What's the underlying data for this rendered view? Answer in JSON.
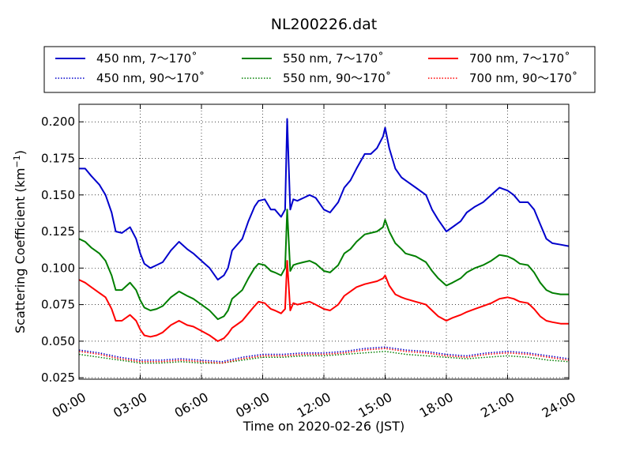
{
  "chart_data": {
    "type": "line",
    "title": "NL200226.dat",
    "xlabel": "Time on 2020-02-26 (JST)",
    "ylabel_main": "Scattering Coefficient (km",
    "ylabel_sup": "−1",
    "ylabel_tail": ")",
    "xlim": [
      0,
      24
    ],
    "ylim": [
      0.024,
      0.212
    ],
    "xticks": [
      0,
      3,
      6,
      9,
      12,
      15,
      18,
      21,
      24
    ],
    "xtick_labels": [
      "00:00",
      "03:00",
      "06:00",
      "09:00",
      "12:00",
      "15:00",
      "18:00",
      "21:00",
      "24:00"
    ],
    "yticks": [
      0.025,
      0.05,
      0.075,
      0.1,
      0.125,
      0.15,
      0.175,
      0.2
    ],
    "ytick_labels": [
      "0.025",
      "0.050",
      "0.075",
      "0.100",
      "0.125",
      "0.150",
      "0.175",
      "0.200"
    ],
    "grid": true,
    "legend_position": "top, above plot, 3 columns",
    "series": [
      {
        "name": "450 nm, 7～170˚",
        "color": "#0000cc",
        "style": "solid",
        "x": [
          0,
          0.3,
          0.6,
          1,
          1.3,
          1.6,
          1.8,
          2.1,
          2.5,
          2.8,
          3,
          3.2,
          3.5,
          3.8,
          4.1,
          4.5,
          4.9,
          5.3,
          5.6,
          6,
          6.4,
          6.8,
          7.1,
          7.3,
          7.5,
          8,
          8.3,
          8.6,
          8.8,
          9.1,
          9.4,
          9.6,
          9.9,
          10.1,
          10.2,
          10.35,
          10.5,
          10.7,
          11,
          11.3,
          11.6,
          12,
          12.3,
          12.7,
          13,
          13.3,
          13.6,
          14,
          14.3,
          14.6,
          14.9,
          15.0,
          15.2,
          15.5,
          15.8,
          16,
          16.5,
          17,
          17.3,
          17.6,
          18,
          18.3,
          18.7,
          19,
          19.4,
          19.8,
          20.2,
          20.6,
          21,
          21.3,
          21.6,
          22,
          22.3,
          22.6,
          22.9,
          23.2,
          23.6,
          24
        ],
        "values": [
          0.168,
          0.168,
          0.163,
          0.157,
          0.15,
          0.138,
          0.125,
          0.124,
          0.128,
          0.12,
          0.11,
          0.103,
          0.1,
          0.102,
          0.104,
          0.112,
          0.118,
          0.113,
          0.11,
          0.105,
          0.1,
          0.092,
          0.095,
          0.1,
          0.112,
          0.12,
          0.132,
          0.142,
          0.146,
          0.147,
          0.14,
          0.14,
          0.135,
          0.14,
          0.202,
          0.14,
          0.147,
          0.146,
          0.148,
          0.15,
          0.148,
          0.14,
          0.138,
          0.145,
          0.155,
          0.16,
          0.168,
          0.178,
          0.178,
          0.182,
          0.19,
          0.196,
          0.182,
          0.168,
          0.162,
          0.16,
          0.155,
          0.15,
          0.14,
          0.133,
          0.125,
          0.128,
          0.132,
          0.138,
          0.142,
          0.145,
          0.15,
          0.155,
          0.153,
          0.15,
          0.145,
          0.145,
          0.14,
          0.13,
          0.12,
          0.117,
          0.116,
          0.115
        ]
      },
      {
        "name": "550 nm, 7～170˚",
        "color": "#007f00",
        "style": "solid",
        "x": [
          0,
          0.3,
          0.6,
          1,
          1.3,
          1.6,
          1.8,
          2.1,
          2.5,
          2.8,
          3,
          3.2,
          3.5,
          3.8,
          4.1,
          4.5,
          4.9,
          5.3,
          5.6,
          6,
          6.4,
          6.8,
          7.1,
          7.3,
          7.5,
          8,
          8.3,
          8.6,
          8.8,
          9.1,
          9.4,
          9.6,
          9.9,
          10.1,
          10.2,
          10.35,
          10.5,
          10.7,
          11,
          11.3,
          11.6,
          12,
          12.3,
          12.7,
          13,
          13.3,
          13.6,
          14,
          14.3,
          14.6,
          14.9,
          15.0,
          15.2,
          15.5,
          15.8,
          16,
          16.5,
          17,
          17.3,
          17.6,
          18,
          18.3,
          18.7,
          19,
          19.4,
          19.8,
          20.2,
          20.6,
          21,
          21.3,
          21.6,
          22,
          22.3,
          22.6,
          22.9,
          23.2,
          23.6,
          24
        ],
        "values": [
          0.12,
          0.118,
          0.114,
          0.11,
          0.105,
          0.095,
          0.085,
          0.085,
          0.09,
          0.085,
          0.078,
          0.073,
          0.071,
          0.072,
          0.074,
          0.08,
          0.084,
          0.081,
          0.079,
          0.075,
          0.071,
          0.065,
          0.067,
          0.071,
          0.079,
          0.085,
          0.093,
          0.1,
          0.103,
          0.102,
          0.098,
          0.097,
          0.095,
          0.1,
          0.14,
          0.098,
          0.102,
          0.103,
          0.104,
          0.105,
          0.103,
          0.098,
          0.097,
          0.102,
          0.11,
          0.113,
          0.118,
          0.123,
          0.124,
          0.125,
          0.128,
          0.133,
          0.125,
          0.117,
          0.113,
          0.11,
          0.108,
          0.104,
          0.098,
          0.093,
          0.088,
          0.09,
          0.093,
          0.097,
          0.1,
          0.102,
          0.105,
          0.109,
          0.108,
          0.106,
          0.103,
          0.102,
          0.097,
          0.09,
          0.085,
          0.083,
          0.082,
          0.082
        ]
      },
      {
        "name": "700 nm, 7～170˚",
        "color": "#ff0000",
        "style": "solid",
        "x": [
          0,
          0.3,
          0.6,
          1,
          1.3,
          1.6,
          1.8,
          2.1,
          2.5,
          2.8,
          3,
          3.2,
          3.5,
          3.8,
          4.1,
          4.5,
          4.9,
          5.3,
          5.6,
          6,
          6.4,
          6.8,
          7.1,
          7.3,
          7.5,
          8,
          8.3,
          8.6,
          8.8,
          9.1,
          9.4,
          9.6,
          9.9,
          10.1,
          10.2,
          10.35,
          10.5,
          10.7,
          11,
          11.3,
          11.6,
          12,
          12.3,
          12.7,
          13,
          13.3,
          13.6,
          14,
          14.3,
          14.6,
          14.9,
          15.0,
          15.2,
          15.5,
          15.8,
          16,
          16.5,
          17,
          17.3,
          17.6,
          18,
          18.3,
          18.7,
          19,
          19.4,
          19.8,
          20.2,
          20.6,
          21,
          21.3,
          21.6,
          22,
          22.3,
          22.6,
          22.9,
          23.2,
          23.6,
          24
        ],
        "values": [
          0.092,
          0.09,
          0.087,
          0.083,
          0.08,
          0.072,
          0.064,
          0.064,
          0.068,
          0.064,
          0.058,
          0.054,
          0.053,
          0.054,
          0.056,
          0.061,
          0.064,
          0.061,
          0.06,
          0.057,
          0.054,
          0.05,
          0.052,
          0.055,
          0.059,
          0.064,
          0.069,
          0.074,
          0.077,
          0.076,
          0.072,
          0.071,
          0.069,
          0.072,
          0.105,
          0.071,
          0.076,
          0.075,
          0.076,
          0.077,
          0.075,
          0.072,
          0.071,
          0.075,
          0.081,
          0.084,
          0.087,
          0.089,
          0.09,
          0.091,
          0.093,
          0.095,
          0.088,
          0.082,
          0.08,
          0.079,
          0.077,
          0.075,
          0.071,
          0.067,
          0.064,
          0.066,
          0.068,
          0.07,
          0.072,
          0.074,
          0.076,
          0.079,
          0.08,
          0.079,
          0.077,
          0.076,
          0.072,
          0.067,
          0.064,
          0.063,
          0.062,
          0.062
        ]
      },
      {
        "name": "450 nm, 90～170˚",
        "color": "#0000cc",
        "style": "dotted",
        "x": [
          0,
          1,
          2,
          3,
          4,
          5,
          6,
          7,
          8,
          9,
          10,
          11,
          12,
          13,
          14,
          15,
          16,
          17,
          18,
          19,
          20,
          21,
          22,
          23,
          24
        ],
        "values": [
          0.044,
          0.042,
          0.039,
          0.037,
          0.037,
          0.038,
          0.037,
          0.036,
          0.039,
          0.041,
          0.041,
          0.042,
          0.042,
          0.043,
          0.045,
          0.046,
          0.044,
          0.043,
          0.041,
          0.04,
          0.042,
          0.043,
          0.042,
          0.04,
          0.038
        ]
      },
      {
        "name": "550 nm, 90～170˚",
        "color": "#007f00",
        "style": "dotted",
        "x": [
          0,
          1,
          2,
          3,
          4,
          5,
          6,
          7,
          8,
          9,
          10,
          11,
          12,
          13,
          14,
          15,
          16,
          17,
          18,
          19,
          20,
          21,
          22,
          23,
          24
        ],
        "values": [
          0.041,
          0.039,
          0.037,
          0.035,
          0.035,
          0.036,
          0.035,
          0.035,
          0.037,
          0.039,
          0.039,
          0.04,
          0.04,
          0.041,
          0.042,
          0.043,
          0.041,
          0.04,
          0.039,
          0.038,
          0.039,
          0.04,
          0.039,
          0.037,
          0.036
        ]
      },
      {
        "name": "700 nm, 90～170˚",
        "color": "#ff0000",
        "style": "dotted",
        "x": [
          0,
          1,
          2,
          3,
          4,
          5,
          6,
          7,
          8,
          9,
          10,
          11,
          12,
          13,
          14,
          15,
          16,
          17,
          18,
          19,
          20,
          21,
          22,
          23,
          24
        ],
        "values": [
          0.043,
          0.041,
          0.038,
          0.036,
          0.036,
          0.037,
          0.036,
          0.035,
          0.038,
          0.04,
          0.04,
          0.041,
          0.041,
          0.042,
          0.044,
          0.045,
          0.043,
          0.042,
          0.04,
          0.039,
          0.041,
          0.042,
          0.041,
          0.039,
          0.037
        ]
      }
    ]
  },
  "legend": {
    "entries": [
      {
        "label": "450 nm, 7～170˚",
        "color": "#0000cc",
        "style": "solid"
      },
      {
        "label": "550 nm, 7～170˚",
        "color": "#007f00",
        "style": "solid"
      },
      {
        "label": "700 nm, 7～170˚",
        "color": "#ff0000",
        "style": "solid"
      },
      {
        "label": "450 nm, 90～170˚",
        "color": "#0000cc",
        "style": "dotted"
      },
      {
        "label": "550 nm, 90～170˚",
        "color": "#007f00",
        "style": "dotted"
      },
      {
        "label": "700 nm, 90～170˚",
        "color": "#ff0000",
        "style": "dotted"
      }
    ]
  }
}
